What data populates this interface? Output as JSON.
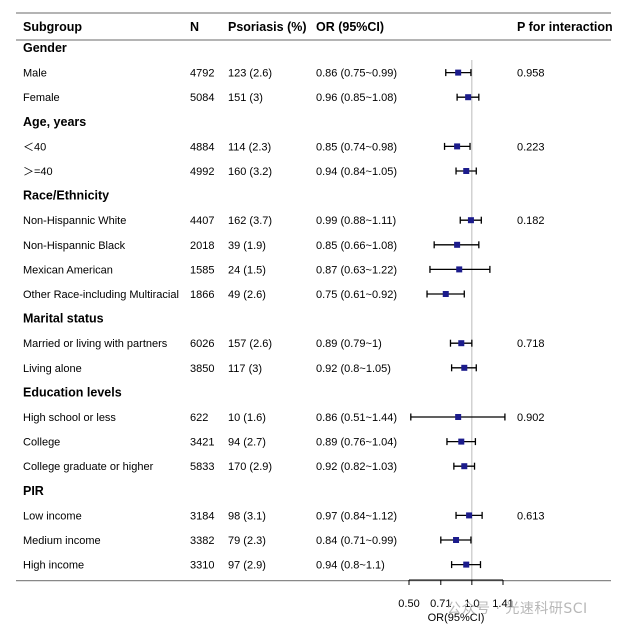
{
  "chart_data": {
    "type": "forest",
    "columns": {
      "subgroup": "Subgroup",
      "n": "N",
      "psoriasis": "Psoriasis (%)",
      "or": "OR (95%CI)",
      "p": "P for interaction"
    },
    "xlabel": "OR(95%CI)",
    "reference_line": 1.0,
    "xlim": [
      0.5,
      1.41
    ],
    "xticks": [
      {
        "value": 0.5,
        "label": "0.50"
      },
      {
        "value": 0.71,
        "label": "0.71"
      },
      {
        "value": 1.0,
        "label": "1.0"
      },
      {
        "value": 1.41,
        "label": "1.41"
      }
    ],
    "x_scale": "log",
    "groups": [
      {
        "label": "Gender",
        "p": "0.958",
        "rows": [
          {
            "label": "Male",
            "n": "4792",
            "psoriasis": "123 (2.6)",
            "or_text": "0.86 (0.75~0.99)",
            "or": 0.86,
            "lo": 0.75,
            "hi": 0.99
          },
          {
            "label": "Female",
            "n": "5084",
            "psoriasis": "151 (3)",
            "or_text": "0.96 (0.85~1.08)",
            "or": 0.96,
            "lo": 0.85,
            "hi": 1.08
          }
        ]
      },
      {
        "label": "Age, years",
        "p": "0.223",
        "rows": [
          {
            "label": "＜40",
            "n": "4884",
            "psoriasis": "114 (2.3)",
            "or_text": "0.85 (0.74~0.98)",
            "or": 0.85,
            "lo": 0.74,
            "hi": 0.98
          },
          {
            "label": "＞=40",
            "n": "4992",
            "psoriasis": "160 (3.2)",
            "or_text": "0.94 (0.84~1.05)",
            "or": 0.94,
            "lo": 0.84,
            "hi": 1.05
          }
        ]
      },
      {
        "label": "Race/Ethnicity",
        "p": "0.182",
        "rows": [
          {
            "label": "Non-Hispannic White",
            "n": "4407",
            "psoriasis": "162 (3.7)",
            "or_text": "0.99 (0.88~1.11)",
            "or": 0.99,
            "lo": 0.88,
            "hi": 1.11
          },
          {
            "label": "Non-Hispannic Black",
            "n": "2018",
            "psoriasis": "39 (1.9)",
            "or_text": "0.85 (0.66~1.08)",
            "or": 0.85,
            "lo": 0.66,
            "hi": 1.08
          },
          {
            "label": "Mexican American",
            "n": "1585",
            "psoriasis": "24 (1.5)",
            "or_text": "0.87 (0.63~1.22)",
            "or": 0.87,
            "lo": 0.63,
            "hi": 1.22
          },
          {
            "label": "Other Race-including Multiracial",
            "n": "1866",
            "psoriasis": "49 (2.6)",
            "or_text": "0.75 (0.61~0.92)",
            "or": 0.75,
            "lo": 0.61,
            "hi": 0.92
          }
        ]
      },
      {
        "label": "Marital status",
        "p": "0.718",
        "rows": [
          {
            "label": "Married or living with partners",
            "n": "6026",
            "psoriasis": "157 (2.6)",
            "or_text": "0.89 (0.79~1)",
            "or": 0.89,
            "lo": 0.79,
            "hi": 1.0
          },
          {
            "label": "Living alone",
            "n": "3850",
            "psoriasis": "117 (3)",
            "or_text": "0.92 (0.8~1.05)",
            "or": 0.92,
            "lo": 0.8,
            "hi": 1.05
          }
        ]
      },
      {
        "label": "Education levels",
        "p": "0.902",
        "rows": [
          {
            "label": "High school or less",
            "n": "622",
            "psoriasis": "10 (1.6)",
            "or_text": "0.86 (0.51~1.44)",
            "or": 0.86,
            "lo": 0.51,
            "hi": 1.44
          },
          {
            "label": "College",
            "n": "3421",
            "psoriasis": "94 (2.7)",
            "or_text": "0.89 (0.76~1.04)",
            "or": 0.89,
            "lo": 0.76,
            "hi": 1.04
          },
          {
            "label": "College graduate or higher",
            "n": "5833",
            "psoriasis": "170 (2.9)",
            "or_text": "0.92 (0.82~1.03)",
            "or": 0.92,
            "lo": 0.82,
            "hi": 1.03
          }
        ]
      },
      {
        "label": "PIR",
        "p": "0.613",
        "rows": [
          {
            "label": "Low income",
            "n": "3184",
            "psoriasis": "98 (3.1)",
            "or_text": "0.97 (0.84~1.12)",
            "or": 0.97,
            "lo": 0.84,
            "hi": 1.12
          },
          {
            "label": "Medium income",
            "n": "3382",
            "psoriasis": "79 (2.3)",
            "or_text": "0.84 (0.71~0.99)",
            "or": 0.84,
            "lo": 0.71,
            "hi": 0.99
          },
          {
            "label": "High income",
            "n": "3310",
            "psoriasis": "97 (2.9)",
            "or_text": "0.94 (0.8~1.1)",
            "or": 0.94,
            "lo": 0.8,
            "hi": 1.1
          }
        ]
      }
    ],
    "colors": {
      "point": "#1c1c8c",
      "line": "#000000",
      "rule": "#888888",
      "ref": "#bbbbbb"
    }
  },
  "watermark": "公众号 · 光速科研SCI"
}
